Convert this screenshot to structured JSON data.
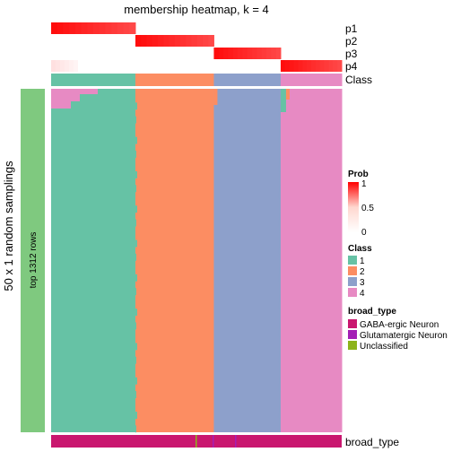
{
  "chart_data": {
    "type": "heatmap",
    "title": "membership heatmap, k = 4",
    "y_axis_label": "50 x 1 random samplings",
    "row_group_label": "top 1312 rows",
    "probability_rows": [
      "p1",
      "p2",
      "p3",
      "p4"
    ],
    "class_row_label": "Class",
    "bottom_annotation_label": "broad_type",
    "class_colors": {
      "1": "#66C2A5",
      "2": "#FC8D62",
      "3": "#8DA0CB",
      "4": "#E78AC3"
    },
    "class_column_fractions": {
      "1": 0.29,
      "2": 0.27,
      "3": 0.23,
      "4": 0.21
    },
    "prob_legend": {
      "title": "Prob",
      "ticks": [
        "1",
        "0.5",
        "0"
      ],
      "low_color": "#FFFFFF",
      "high_color": "#FF0000"
    },
    "class_legend": {
      "title": "Class",
      "items": [
        {
          "label": "1",
          "color": "#66C2A5"
        },
        {
          "label": "2",
          "color": "#FC8D62"
        },
        {
          "label": "3",
          "color": "#8DA0CB"
        },
        {
          "label": "4",
          "color": "#E78AC3"
        }
      ]
    },
    "broad_type_legend": {
      "title": "broad_type",
      "items": [
        {
          "label": "GABA-ergic Neuron",
          "color": "#C9176F"
        },
        {
          "label": "Glutamatergic Neuron",
          "color": "#A31FB5"
        },
        {
          "label": "Unclassified",
          "color": "#8DB31A"
        }
      ]
    },
    "row_annotation_color": "#7FC97F"
  }
}
